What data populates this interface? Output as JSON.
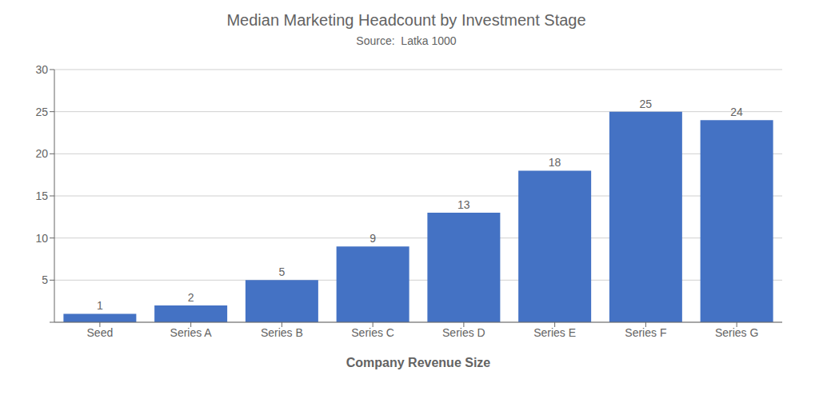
{
  "chart_data": {
    "type": "bar",
    "title": "Median Marketing Headcount by Investment Stage",
    "subtitle": "Source:  Latka 1000",
    "xlabel": "Company Revenue Size",
    "categories": [
      "Seed",
      "Series A",
      "Series B",
      "Series C",
      "Series D",
      "Series E",
      "Series F",
      "Series G"
    ],
    "values": [
      1,
      2,
      5,
      9,
      13,
      18,
      25,
      24
    ],
    "color": "#4472C4",
    "ylim": [
      0,
      30
    ],
    "yticks": [
      {
        "value": 0,
        "label": null
      },
      5,
      10,
      15,
      20,
      25,
      30
    ],
    "grid": true,
    "data_labels": true
  }
}
